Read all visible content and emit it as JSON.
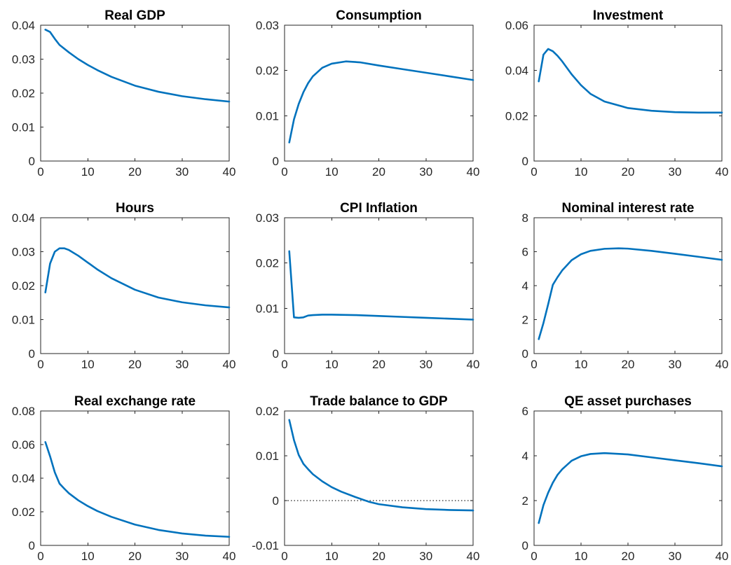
{
  "figure": {
    "line_color": "#0072BD",
    "grid": false,
    "legend": "none"
  },
  "chart_data": [
    {
      "type": "line",
      "title": "Real GDP",
      "xlim": [
        0,
        40
      ],
      "ylim": [
        0,
        0.04
      ],
      "xticks": [
        0,
        10,
        20,
        30,
        40
      ],
      "xtick_labels": [
        "0",
        "10",
        "20",
        "30",
        "40"
      ],
      "yticks": [
        0,
        0.01,
        0.02,
        0.03,
        0.04
      ],
      "ytick_labels": [
        "0",
        "0.01",
        "0.02",
        "0.03",
        "0.04"
      ],
      "zero_line": false,
      "series": [
        {
          "x": [
            1,
            2,
            3,
            4,
            6,
            8,
            10,
            12,
            15,
            20,
            25,
            30,
            35,
            40
          ],
          "values": [
            0.0387,
            0.038,
            0.036,
            0.0342,
            0.032,
            0.03,
            0.0283,
            0.0268,
            0.0248,
            0.0222,
            0.0204,
            0.0191,
            0.0182,
            0.0175
          ]
        }
      ]
    },
    {
      "type": "line",
      "title": "Consumption",
      "xlim": [
        0,
        40
      ],
      "ylim": [
        0,
        0.03
      ],
      "xticks": [
        0,
        10,
        20,
        30,
        40
      ],
      "xtick_labels": [
        "0",
        "10",
        "20",
        "30",
        "40"
      ],
      "yticks": [
        0,
        0.01,
        0.02,
        0.03
      ],
      "ytick_labels": [
        "0",
        "0.01",
        "0.02",
        "0.03"
      ],
      "zero_line": false,
      "series": [
        {
          "x": [
            1,
            2,
            3,
            4,
            5,
            6,
            8,
            10,
            13,
            16,
            20,
            25,
            30,
            35,
            40
          ],
          "values": [
            0.0041,
            0.0092,
            0.0126,
            0.0152,
            0.0172,
            0.0187,
            0.0206,
            0.0215,
            0.022,
            0.0218,
            0.0211,
            0.0203,
            0.0195,
            0.0187,
            0.0179
          ]
        }
      ]
    },
    {
      "type": "line",
      "title": "Investment",
      "xlim": [
        0,
        40
      ],
      "ylim": [
        0,
        0.06
      ],
      "xticks": [
        0,
        10,
        20,
        30,
        40
      ],
      "xtick_labels": [
        "0",
        "10",
        "20",
        "30",
        "40"
      ],
      "yticks": [
        0,
        0.02,
        0.04,
        0.06
      ],
      "ytick_labels": [
        "0",
        "0.02",
        "0.04",
        "0.06"
      ],
      "zero_line": false,
      "series": [
        {
          "x": [
            1,
            2,
            3,
            4,
            5,
            6,
            8,
            10,
            12,
            15,
            20,
            25,
            30,
            35,
            40
          ],
          "values": [
            0.0352,
            0.047,
            0.0495,
            0.0485,
            0.0465,
            0.044,
            0.0383,
            0.0335,
            0.0297,
            0.0263,
            0.0234,
            0.0222,
            0.0216,
            0.0214,
            0.0214
          ]
        }
      ]
    },
    {
      "type": "line",
      "title": "Hours",
      "xlim": [
        0,
        40
      ],
      "ylim": [
        0,
        0.04
      ],
      "xticks": [
        0,
        10,
        20,
        30,
        40
      ],
      "xtick_labels": [
        "0",
        "10",
        "20",
        "30",
        "40"
      ],
      "yticks": [
        0,
        0.01,
        0.02,
        0.03,
        0.04
      ],
      "ytick_labels": [
        "0",
        "0.01",
        "0.02",
        "0.03",
        "0.04"
      ],
      "zero_line": false,
      "series": [
        {
          "x": [
            1,
            2,
            3,
            4,
            5,
            6,
            8,
            10,
            12,
            15,
            20,
            25,
            30,
            35,
            40
          ],
          "values": [
            0.018,
            0.0265,
            0.03,
            0.031,
            0.031,
            0.0305,
            0.0288,
            0.0268,
            0.0248,
            0.0222,
            0.0188,
            0.0165,
            0.0151,
            0.0142,
            0.0136
          ]
        }
      ]
    },
    {
      "type": "line",
      "title": "CPI Inflation",
      "xlim": [
        0,
        40
      ],
      "ylim": [
        0,
        0.03
      ],
      "xticks": [
        0,
        10,
        20,
        30,
        40
      ],
      "xtick_labels": [
        "0",
        "10",
        "20",
        "30",
        "40"
      ],
      "yticks": [
        0,
        0.01,
        0.02,
        0.03
      ],
      "ytick_labels": [
        "0",
        "0.01",
        "0.02",
        "0.03"
      ],
      "zero_line": false,
      "series": [
        {
          "x": [
            1,
            2,
            3,
            4,
            5,
            6,
            8,
            10,
            15,
            20,
            25,
            30,
            35,
            40
          ],
          "values": [
            0.0226,
            0.008,
            0.0079,
            0.008,
            0.0084,
            0.0085,
            0.0086,
            0.0086,
            0.0085,
            0.0083,
            0.0081,
            0.0079,
            0.0077,
            0.0075
          ]
        }
      ]
    },
    {
      "type": "line",
      "title": "Nominal interest rate",
      "xlim": [
        0,
        40
      ],
      "ylim": [
        0,
        8
      ],
      "xticks": [
        0,
        10,
        20,
        30,
        40
      ],
      "xtick_labels": [
        "0",
        "10",
        "20",
        "30",
        "40"
      ],
      "yticks": [
        0,
        2,
        4,
        6,
        8
      ],
      "ytick_labels": [
        "0",
        "2",
        "4",
        "6",
        "8"
      ],
      "zero_line": false,
      "series": [
        {
          "x": [
            1,
            2,
            3,
            4,
            5,
            6,
            8,
            10,
            12,
            15,
            18,
            20,
            25,
            30,
            35,
            40
          ],
          "values": [
            0.85,
            1.8,
            2.9,
            4.05,
            4.5,
            4.9,
            5.5,
            5.85,
            6.05,
            6.17,
            6.2,
            6.18,
            6.05,
            5.88,
            5.7,
            5.52
          ]
        }
      ]
    },
    {
      "type": "line",
      "title": "Real exchange rate",
      "xlim": [
        0,
        40
      ],
      "ylim": [
        0,
        0.08
      ],
      "xticks": [
        0,
        10,
        20,
        30,
        40
      ],
      "xtick_labels": [
        "0",
        "10",
        "20",
        "30",
        "40"
      ],
      "yticks": [
        0,
        0.02,
        0.04,
        0.06,
        0.08
      ],
      "ytick_labels": [
        "0",
        "0.02",
        "0.04",
        "0.06",
        "0.08"
      ],
      "zero_line": false,
      "series": [
        {
          "x": [
            1,
            2,
            3,
            4,
            5,
            6,
            8,
            10,
            12,
            15,
            20,
            25,
            30,
            35,
            40
          ],
          "values": [
            0.0615,
            0.053,
            0.0435,
            0.0368,
            0.0338,
            0.031,
            0.0268,
            0.0234,
            0.0205,
            0.017,
            0.0124,
            0.0092,
            0.0071,
            0.0058,
            0.0051
          ]
        }
      ]
    },
    {
      "type": "line",
      "title": "Trade balance to GDP",
      "xlim": [
        0,
        40
      ],
      "ylim": [
        -0.01,
        0.02
      ],
      "xticks": [
        0,
        10,
        20,
        30,
        40
      ],
      "xtick_labels": [
        "0",
        "10",
        "20",
        "30",
        "40"
      ],
      "yticks": [
        -0.01,
        0,
        0.01,
        0.02
      ],
      "ytick_labels": [
        "-0.01",
        "0",
        "0.01",
        "0.02"
      ],
      "zero_line": true,
      "series": [
        {
          "x": [
            1,
            2,
            3,
            4,
            5,
            6,
            8,
            10,
            12,
            15,
            18,
            20,
            25,
            30,
            35,
            40
          ],
          "values": [
            0.018,
            0.0135,
            0.0102,
            0.0082,
            0.007,
            0.0059,
            0.0043,
            0.003,
            0.002,
            0.0008,
            -0.0003,
            -0.0008,
            -0.0015,
            -0.0019,
            -0.0021,
            -0.0022
          ]
        }
      ]
    },
    {
      "type": "line",
      "title": "QE asset purchases",
      "xlim": [
        0,
        40
      ],
      "ylim": [
        0,
        6
      ],
      "xticks": [
        0,
        10,
        20,
        30,
        40
      ],
      "xtick_labels": [
        "0",
        "10",
        "20",
        "30",
        "40"
      ],
      "yticks": [
        0,
        2,
        4,
        6
      ],
      "ytick_labels": [
        "0",
        "2",
        "4",
        "6"
      ],
      "zero_line": false,
      "series": [
        {
          "x": [
            1,
            2,
            3,
            4,
            5,
            6,
            8,
            10,
            12,
            15,
            20,
            25,
            30,
            35,
            40
          ],
          "values": [
            1.0,
            1.8,
            2.35,
            2.8,
            3.15,
            3.4,
            3.78,
            3.98,
            4.08,
            4.12,
            4.06,
            3.93,
            3.8,
            3.67,
            3.53
          ]
        }
      ]
    }
  ]
}
